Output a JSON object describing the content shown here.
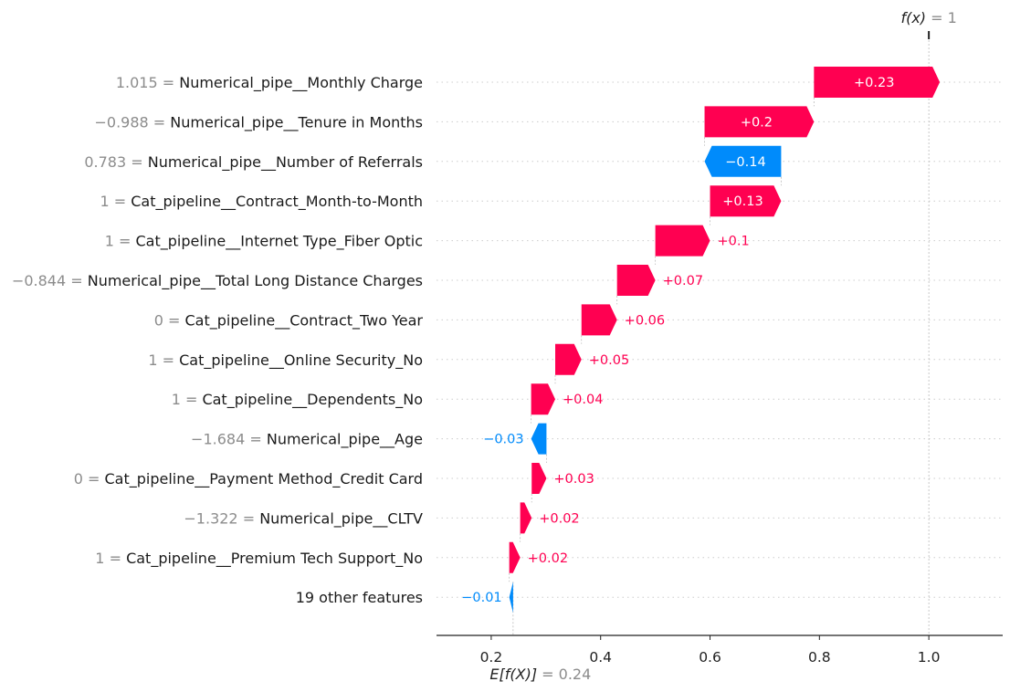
{
  "chart_data": {
    "type": "waterfall",
    "title": "",
    "xlabel": "",
    "ylabel": "",
    "base_value": 0.24,
    "output_value": 1,
    "base_label": {
      "expr": "E[f(X)]",
      "value_text": "= 0.24"
    },
    "output_label": {
      "expr": "f(x)",
      "value_text": "= 1"
    },
    "xlim": [
      0.1,
      1.135
    ],
    "xticks": [
      0.2,
      0.4,
      0.6,
      0.8,
      1.0
    ],
    "xtick_labels": [
      "0.2",
      "0.4",
      "0.6",
      "0.8",
      "1.0"
    ],
    "colors": {
      "positive": "#ff0051",
      "negative": "#008bfb"
    },
    "features": [
      {
        "value": "1.015",
        "name": "Numerical_pipe__Monthly Charge",
        "contribution": 0.23,
        "label": "+0.23"
      },
      {
        "value": "−0.988",
        "name": "Numerical_pipe__Tenure in Months",
        "contribution": 0.2,
        "label": "+0.2"
      },
      {
        "value": "0.783",
        "name": "Numerical_pipe__Number of Referrals",
        "contribution": -0.14,
        "label": "−0.14"
      },
      {
        "value": "1",
        "name": "Cat_pipeline__Contract_Month-to-Month",
        "contribution": 0.13,
        "label": "+0.13"
      },
      {
        "value": "1",
        "name": "Cat_pipeline__Internet Type_Fiber Optic",
        "contribution": 0.1,
        "label": "+0.1"
      },
      {
        "value": "−0.844",
        "name": "Numerical_pipe__Total Long Distance Charges",
        "contribution": 0.07,
        "label": "+0.07"
      },
      {
        "value": "0",
        "name": "Cat_pipeline__Contract_Two Year",
        "contribution": 0.065,
        "label": "+0.06"
      },
      {
        "value": "1",
        "name": "Cat_pipeline__Online Security_No",
        "contribution": 0.048,
        "label": "+0.05"
      },
      {
        "value": "1",
        "name": "Cat_pipeline__Dependents_No",
        "contribution": 0.044,
        "label": "+0.04"
      },
      {
        "value": "−1.684",
        "name": "Numerical_pipe__Age",
        "contribution": -0.028,
        "label": "−0.03"
      },
      {
        "value": "0",
        "name": "Cat_pipeline__Payment Method_Credit Card",
        "contribution": 0.027,
        "label": "+0.03"
      },
      {
        "value": "−1.322",
        "name": "Numerical_pipe__CLTV",
        "contribution": 0.021,
        "label": "+0.02"
      },
      {
        "value": "1",
        "name": "Cat_pipeline__Premium Tech Support_No",
        "contribution": 0.02,
        "label": "+0.02"
      },
      {
        "value": "",
        "name": "19 other features",
        "contribution": -0.007,
        "label": "−0.01"
      }
    ]
  }
}
